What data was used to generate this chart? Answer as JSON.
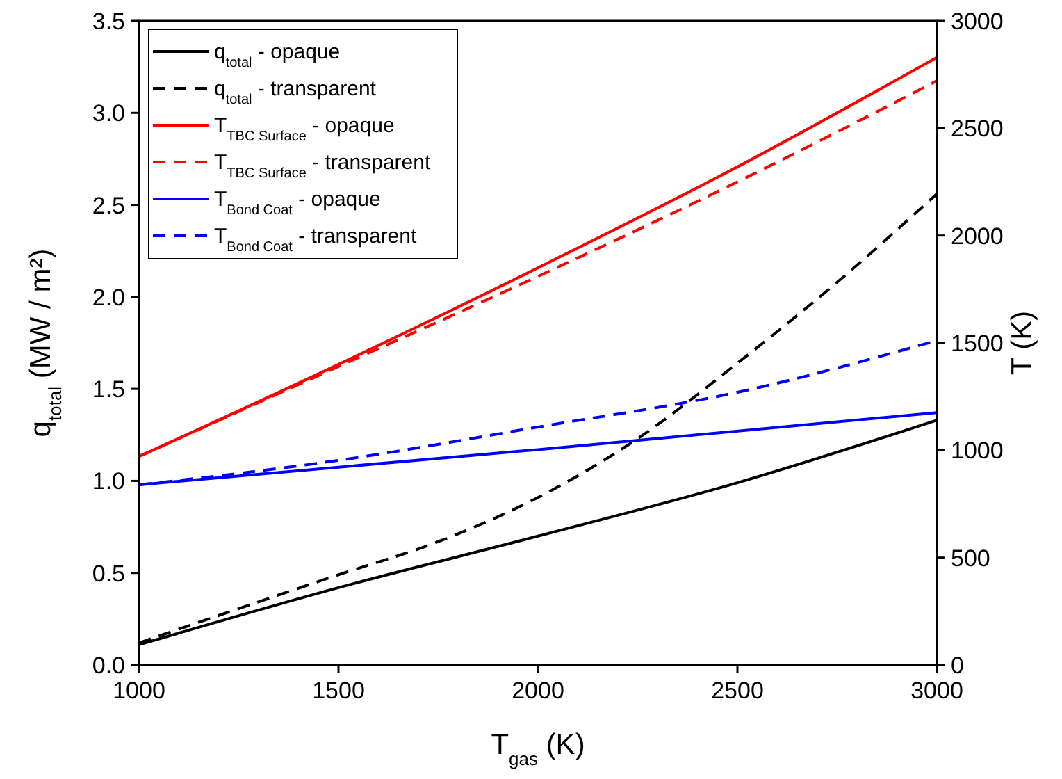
{
  "chart_data": {
    "type": "line",
    "xlabel": "T$_{gas}$ (K)",
    "ylabel": "q$_{total}$ (MW / m²)",
    "y2label": "T (K)",
    "x": [
      1000,
      1500,
      1750,
      2000,
      2250,
      2500,
      2750,
      3000
    ],
    "xlim": [
      1000,
      3000
    ],
    "xticks": [
      1000,
      1500,
      2000,
      2500,
      3000
    ],
    "ylim": [
      0,
      3.5
    ],
    "yticks": [
      {
        "value": 0,
        "label": "0.0"
      },
      0.5,
      {
        "value": 1,
        "label": "1.0"
      },
      1.5,
      {
        "value": 2,
        "label": "2.0"
      },
      2.5,
      {
        "value": 3,
        "label": "3.0"
      },
      3.5
    ],
    "y2lim": [
      0,
      3000
    ],
    "y2ticks": [
      0,
      500,
      1000,
      1500,
      2000,
      2500,
      3000
    ],
    "legend": "top left",
    "grid": false,
    "series": [
      {
        "name": "q$_{total}$ - opaque",
        "color": "#000000",
        "line_style": "solid",
        "x": [
          1000,
          1500,
          2000,
          2500,
          3000
        ],
        "values": [
          0.11,
          0.42,
          0.7,
          0.99,
          1.33
        ]
      },
      {
        "name": "q$_{total}$ - transparent",
        "color": "#000000",
        "line_style": "dashed",
        "values": [
          0.12,
          0.49,
          0.67,
          0.91,
          1.23,
          1.64,
          2.08,
          2.56
        ]
      },
      {
        "name": "T$_{TBC Surface}$ - opaque",
        "color": "#ff0000",
        "line_style": "solid",
        "axis": "y2",
        "x": [
          1000,
          1500,
          2000,
          2500,
          3000
        ],
        "values": [
          971,
          1400,
          1850,
          2320,
          2830
        ]
      },
      {
        "name": "T$_{TBC Surface}$ - transparent",
        "color": "#ff0000",
        "line_style": "dashed",
        "axis": "y2",
        "x": [
          1000,
          1500,
          2000,
          2500,
          3000
        ],
        "values": [
          971,
          1390,
          1810,
          2250,
          2721
        ]
      },
      {
        "name": "T$_{Bond Coat}$ - opaque",
        "color": "#0000ff",
        "line_style": "solid",
        "axis": "y2",
        "x": [
          1000,
          2000,
          3000
        ],
        "values": [
          839,
          1003,
          1175
        ]
      },
      {
        "name": "T$_{Bond Coat}$ - transparent",
        "color": "#0000ff",
        "line_style": "dashed",
        "axis": "y2",
        "x": [
          1000,
          1500,
          2000,
          2500,
          3000
        ],
        "values": [
          839,
          953,
          1108,
          1270,
          1511
        ]
      }
    ]
  }
}
